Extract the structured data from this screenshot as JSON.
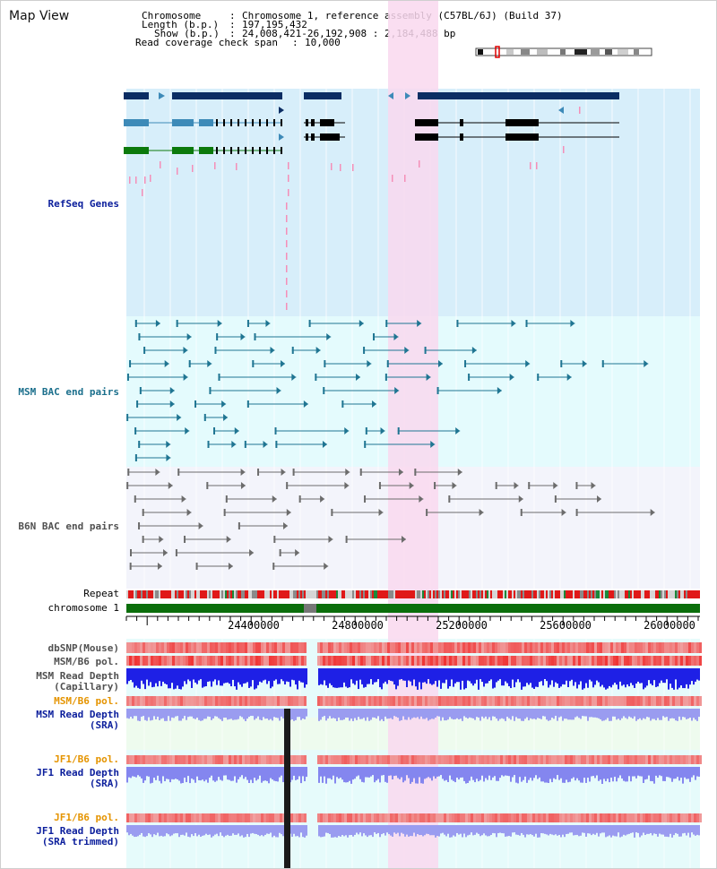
{
  "header": {
    "view_title": "Map View",
    "chromosome_key": "Chromosome",
    "chromosome_value": "Chromosome 1, reference assembly (C57BL/6J) (Build 37)",
    "length_key": "Length (b.p.)",
    "length_value": "197,195,432",
    "show_key": "Show (b.p.)",
    "show_value": "24,008,421-26,192,908 : 2,184,488 bp",
    "span_key": "Read coverage check span",
    "span_value": "10,000"
  },
  "colors": {
    "refseq_bg": "#d7eefa",
    "bac_bg": "#e4fbfd",
    "b6n_bg": "#f3f4fb",
    "highlight": "#f9d8ef",
    "gene_dark": "#0b2d63",
    "gene_light": "#3d8ab8",
    "gene_green": "#0c7a0c",
    "msm_bac": "#1f7592",
    "b6n_bac": "#6c6c6c",
    "label_navy": "#0b1e9c",
    "label_teal": "#1b6f8c",
    "label_orange": "#e59400",
    "label_gray": "#505050"
  },
  "tracks": {
    "refseq": "RefSeq Genes",
    "msm_bac": "MSM BAC end pairs",
    "b6n_bac": "B6N BAC end pairs",
    "repeat": "Repeat",
    "chromosome": "chromosome 1",
    "dbsnp": "dbSNP(Mouse)",
    "msm_pol": "MSM/B6 pol.",
    "msm_depth_cap_1": "MSM Read Depth",
    "msm_depth_cap_2": "(Capillary)",
    "msm_pol2": "MSM/B6 pol.",
    "msm_depth_sra_1": "MSM Read Depth",
    "msm_depth_sra_2": "(SRA)",
    "jf1_pol": "JF1/B6 pol.",
    "jf1_depth_sra_1": "JF1 Read Depth",
    "jf1_depth_sra_2": "(SRA)",
    "jf1_pol2": "JF1/B6 pol.",
    "jf1_depth_trim_1": "JF1 Read Depth",
    "jf1_depth_trim_2": "(SRA trimmed)"
  },
  "axis": {
    "ticks": [
      "24400000",
      "24800000",
      "25200000",
      "25600000",
      "26000000"
    ]
  }
}
